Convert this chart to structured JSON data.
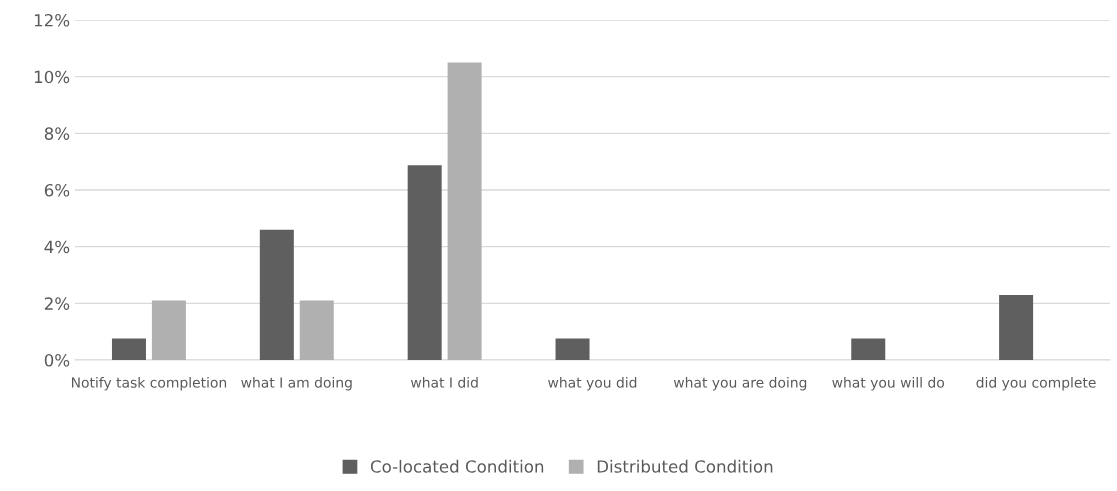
{
  "chart_data": {
    "type": "bar",
    "categories": [
      "Notify task completion",
      "what I am doing",
      "what I did",
      "what you did",
      "what you are doing",
      "what you will do",
      "did you complete"
    ],
    "series": [
      {
        "name": "Co-located Condition",
        "color": "#5f5f5f",
        "values": [
          0.76,
          4.6,
          6.87,
          0.76,
          0,
          0.76,
          2.29
        ]
      },
      {
        "name": "Distributed Condition",
        "color": "#b0b0b0",
        "values": [
          2.1,
          2.1,
          10.5,
          0,
          0,
          0,
          0
        ]
      }
    ],
    "ylim": [
      0,
      12
    ],
    "yticks": [
      {
        "value": 0,
        "label": "0%"
      },
      {
        "value": 2,
        "label": "2%"
      },
      {
        "value": 4,
        "label": "4%"
      },
      {
        "value": 6,
        "label": "6%"
      },
      {
        "value": 8,
        "label": "8%"
      },
      {
        "value": 10,
        "label": "10%"
      },
      {
        "value": 12,
        "label": "12%"
      }
    ],
    "grid": "y",
    "legend": "bottom"
  }
}
